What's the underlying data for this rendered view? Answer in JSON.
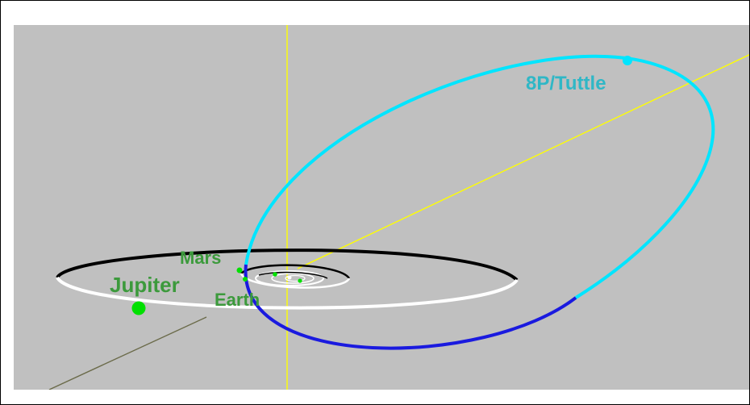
{
  "labels": {
    "comet": "8P/Tuttle",
    "mars": "Mars",
    "jupiter": "Jupiter",
    "earth": "Earth"
  },
  "colors": {
    "background": "#c0c0c0",
    "comet_orbit_above": "#00e5ff",
    "comet_orbit_below": "#1a1adf",
    "planet_orbit_above": "#000000",
    "planet_orbit_below": "#ffffff",
    "axis_z": "#ffff00",
    "axis_y": "#ffff00",
    "axis_x": "#6b6b4a",
    "planet_dot": "#00e000",
    "planet_label": "#3c9a3c",
    "comet_label": "#2fb7c6"
  }
}
